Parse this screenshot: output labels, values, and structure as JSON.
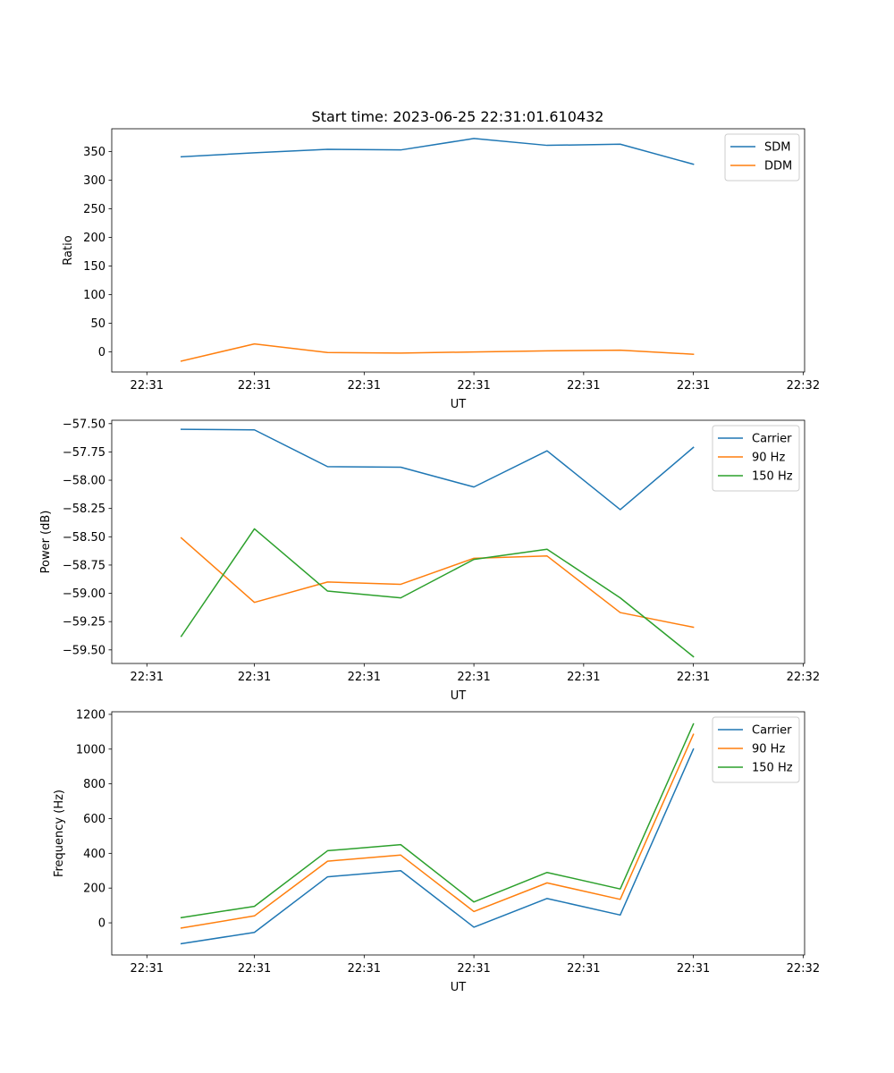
{
  "title": "Start time: 2023-06-25 22:31:01.610432",
  "chart_data": [
    {
      "type": "line",
      "ylabel": "Ratio",
      "xlabel": "UT",
      "ylim": [
        -35,
        390
      ],
      "yticks": [
        0,
        50,
        100,
        150,
        200,
        250,
        300,
        350
      ],
      "legend_position": "top-right",
      "xticks": [
        {
          "i": -0.47,
          "label": "22:31"
        },
        {
          "i": 1.0,
          "label": "22:31"
        },
        {
          "i": 2.5,
          "label": "22:31"
        },
        {
          "i": 4.0,
          "label": "22:31"
        },
        {
          "i": 5.5,
          "label": "22:31"
        },
        {
          "i": 7.0,
          "label": "22:31"
        },
        {
          "i": 8.5,
          "label": "22:32"
        }
      ],
      "xlim": [
        -0.95,
        8.52
      ],
      "series": [
        {
          "name": "SDM",
          "color": "#1f77b4",
          "values": [
            341,
            348,
            354,
            353,
            373,
            361,
            363,
            328
          ]
        },
        {
          "name": "DDM",
          "color": "#ff7f0e",
          "values": [
            -16,
            14,
            -1,
            -2,
            0,
            2,
            3,
            -4
          ]
        }
      ]
    },
    {
      "type": "line",
      "ylabel": "Power (dB)",
      "xlabel": "UT",
      "ylim": [
        -59.62,
        -57.47
      ],
      "yticks": [
        -59.5,
        -59.25,
        -59.0,
        -58.75,
        -58.5,
        -58.25,
        -58.0,
        -57.75,
        -57.5
      ],
      "ytick_labels": [
        "−59.50",
        "−59.25",
        "−59.00",
        "−58.75",
        "−58.50",
        "−58.25",
        "−58.00",
        "−57.75",
        "−57.50"
      ],
      "legend_position": "top-right",
      "xticks": [
        {
          "i": -0.47,
          "label": "22:31"
        },
        {
          "i": 1.0,
          "label": "22:31"
        },
        {
          "i": 2.5,
          "label": "22:31"
        },
        {
          "i": 4.0,
          "label": "22:31"
        },
        {
          "i": 5.5,
          "label": "22:31"
        },
        {
          "i": 7.0,
          "label": "22:31"
        },
        {
          "i": 8.5,
          "label": "22:32"
        }
      ],
      "xlim": [
        -0.95,
        8.52
      ],
      "series": [
        {
          "name": "Carrier",
          "color": "#1f77b4",
          "values": [
            -57.55,
            -57.555,
            -57.88,
            -57.885,
            -58.06,
            -57.74,
            -58.26,
            -57.71
          ]
        },
        {
          "name": "90 Hz",
          "color": "#ff7f0e",
          "values": [
            -58.51,
            -59.08,
            -58.9,
            -58.92,
            -58.69,
            -58.67,
            -59.17,
            -59.3
          ]
        },
        {
          "name": "150 Hz",
          "color": "#2ca02c",
          "values": [
            -59.38,
            -58.43,
            -58.98,
            -59.04,
            -58.7,
            -58.61,
            -59.04,
            -59.56
          ]
        }
      ]
    },
    {
      "type": "line",
      "ylabel": "Frequency (Hz)",
      "xlabel": "UT",
      "ylim": [
        -185,
        1215
      ],
      "yticks": [
        0,
        200,
        400,
        600,
        800,
        1000,
        1200
      ],
      "legend_position": "top-right",
      "xticks": [
        {
          "i": -0.47,
          "label": "22:31"
        },
        {
          "i": 1.0,
          "label": "22:31"
        },
        {
          "i": 2.5,
          "label": "22:31"
        },
        {
          "i": 4.0,
          "label": "22:31"
        },
        {
          "i": 5.5,
          "label": "22:31"
        },
        {
          "i": 7.0,
          "label": "22:31"
        },
        {
          "i": 8.5,
          "label": "22:32"
        }
      ],
      "xlim": [
        -0.95,
        8.52
      ],
      "series": [
        {
          "name": "Carrier",
          "color": "#1f77b4",
          "values": [
            -120,
            -55,
            265,
            300,
            -25,
            140,
            45,
            1000
          ]
        },
        {
          "name": "90 Hz",
          "color": "#ff7f0e",
          "values": [
            -30,
            40,
            355,
            390,
            65,
            230,
            135,
            1085
          ]
        },
        {
          "name": "150 Hz",
          "color": "#2ca02c",
          "values": [
            30,
            95,
            415,
            450,
            120,
            290,
            195,
            1145
          ]
        }
      ]
    }
  ]
}
